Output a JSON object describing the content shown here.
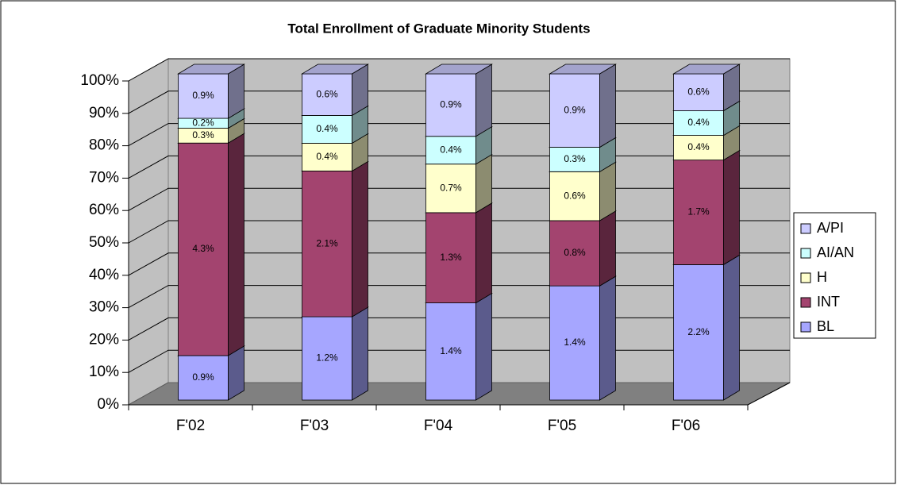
{
  "chart_data": {
    "type": "bar",
    "stacking": "percent",
    "title": "Total Enrollment of Graduate Minority Students",
    "categories": [
      "F'02",
      "F'03",
      "F'04",
      "F'05",
      "F'06"
    ],
    "series": [
      {
        "name": "BL",
        "color": "#a6a6ff",
        "values": [
          0.9,
          1.2,
          1.4,
          1.4,
          2.2
        ],
        "value_labels": [
          "0.9%",
          "1.2%",
          "1.4%",
          "1.4%",
          "2.2%"
        ]
      },
      {
        "name": "INT",
        "color": "#a3446f",
        "values": [
          4.3,
          2.1,
          1.3,
          0.8,
          1.7
        ],
        "value_labels": [
          "4.3%",
          "2.1%",
          "1.3%",
          "0.8%",
          "1.7%"
        ]
      },
      {
        "name": "H",
        "color": "#ffffcc",
        "values": [
          0.3,
          0.4,
          0.7,
          0.6,
          0.4
        ],
        "value_labels": [
          "0.3%",
          "0.4%",
          "0.7%",
          "0.6%",
          "0.4%"
        ]
      },
      {
        "name": "AI/AN",
        "color": "#ccffff",
        "values": [
          0.2,
          0.4,
          0.4,
          0.3,
          0.4
        ],
        "value_labels": [
          "0.2%",
          "0.4%",
          "0.4%",
          "0.3%",
          "0.4%"
        ]
      },
      {
        "name": "A/PI",
        "color": "#ccccff",
        "values": [
          0.9,
          0.6,
          0.9,
          0.9,
          0.6
        ],
        "value_labels": [
          "0.9%",
          "0.6%",
          "0.9%",
          "0.9%",
          "0.6%"
        ]
      }
    ],
    "ylim": [
      0,
      100
    ],
    "yticks": [
      {
        "value": 0,
        "label": "0%"
      },
      {
        "value": 10,
        "label": "10%"
      },
      {
        "value": 20,
        "label": "20%"
      },
      {
        "value": 30,
        "label": "30%"
      },
      {
        "value": 40,
        "label": "40%"
      },
      {
        "value": 50,
        "label": "50%"
      },
      {
        "value": 60,
        "label": "60%"
      },
      {
        "value": 70,
        "label": "70%"
      },
      {
        "value": 80,
        "label": "80%"
      },
      {
        "value": 90,
        "label": "90%"
      },
      {
        "value": 100,
        "label": "100%"
      }
    ],
    "grid": true,
    "legend": "right"
  }
}
